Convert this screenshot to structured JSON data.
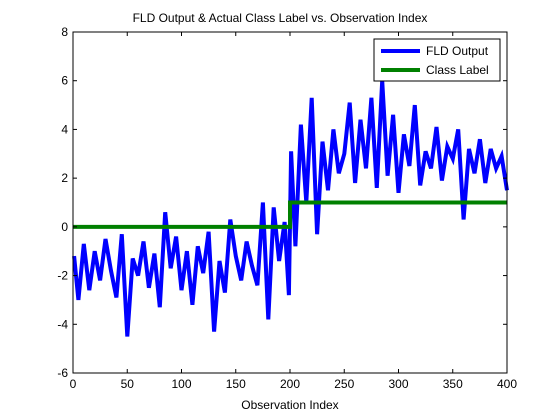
{
  "chart_data": {
    "type": "line",
    "title": "FLD Output & Actual Class Label vs. Observation Index",
    "xlabel": "Observation Index",
    "ylabel": "",
    "xlim": [
      0,
      400
    ],
    "ylim": [
      -6,
      8
    ],
    "xticks": [
      0,
      50,
      100,
      150,
      200,
      250,
      300,
      350,
      400
    ],
    "yticks": [
      -6,
      -4,
      -2,
      0,
      2,
      4,
      6,
      8
    ],
    "grid": false,
    "legend_position": "top-right",
    "series": [
      {
        "name": "FLD Output",
        "color": "#0000ff",
        "x": [
          1,
          5,
          10,
          15,
          20,
          25,
          30,
          35,
          40,
          45,
          50,
          55,
          60,
          65,
          70,
          75,
          80,
          85,
          90,
          95,
          100,
          105,
          110,
          115,
          120,
          125,
          130,
          135,
          140,
          145,
          150,
          155,
          160,
          165,
          170,
          175,
          180,
          185,
          190,
          195,
          199,
          201,
          205,
          210,
          215,
          220,
          225,
          230,
          235,
          240,
          245,
          250,
          255,
          260,
          265,
          270,
          275,
          280,
          285,
          290,
          295,
          300,
          305,
          310,
          315,
          320,
          325,
          330,
          335,
          340,
          345,
          350,
          355,
          360,
          365,
          370,
          375,
          380,
          385,
          390,
          395,
          400
        ],
        "y": [
          -1.2,
          -3.0,
          -0.7,
          -2.6,
          -1.0,
          -2.2,
          -0.5,
          -1.8,
          -2.9,
          -0.3,
          -4.5,
          -1.3,
          -2.0,
          -0.6,
          -2.5,
          -1.1,
          -3.3,
          0.6,
          -1.7,
          -0.4,
          -2.6,
          -1.0,
          -3.2,
          -0.8,
          -1.9,
          -0.2,
          -4.3,
          -1.4,
          -2.7,
          0.3,
          -1.2,
          -2.2,
          -0.6,
          -1.6,
          -2.4,
          1.0,
          -3.8,
          0.8,
          -1.4,
          0.2,
          -2.8,
          3.1,
          -0.8,
          4.2,
          1.0,
          5.3,
          -0.3,
          3.5,
          1.5,
          4.0,
          2.2,
          3.0,
          5.1,
          1.8,
          4.4,
          2.4,
          5.3,
          1.6,
          6.0,
          2.1,
          4.6,
          1.4,
          3.8,
          2.5,
          5.0,
          1.7,
          3.1,
          2.4,
          4.1,
          1.9,
          3.3,
          2.8,
          4.0,
          0.3,
          3.2,
          2.2,
          3.6,
          1.8,
          3.2,
          2.4,
          2.9,
          1.5
        ]
      },
      {
        "name": "Class Label",
        "color": "#008000",
        "x": [
          0,
          200,
          200,
          400
        ],
        "y": [
          0,
          0,
          1,
          1
        ]
      }
    ]
  }
}
